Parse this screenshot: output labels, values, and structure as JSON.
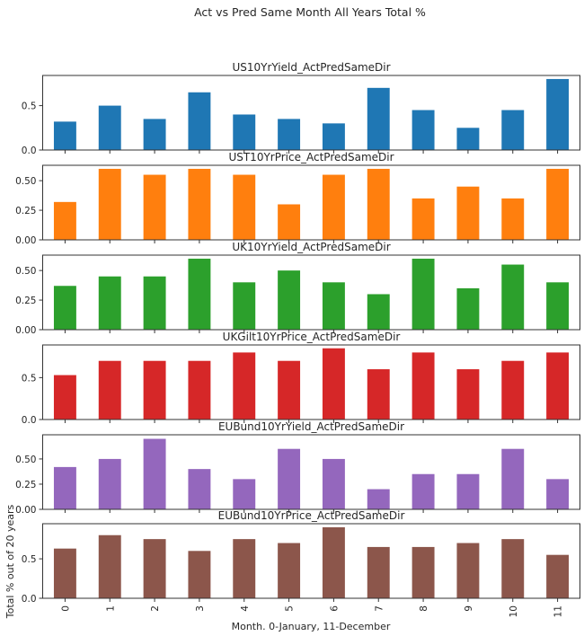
{
  "chart_data": {
    "type": "bar",
    "title": "Act vs Pred Same Month All Years Total %",
    "xlabel": "Month. 0-January, 11-December",
    "ylabel": "Total % out of 20 years",
    "categories": [
      "0",
      "1",
      "2",
      "3",
      "4",
      "5",
      "6",
      "7",
      "8",
      "9",
      "10",
      "11"
    ],
    "grid": false,
    "legend": "none",
    "subplots": [
      {
        "name": "US10YrYield_ActPredSameDir",
        "color": "#1f77b4",
        "ylim": [
          0,
          0.84
        ],
        "yticks": [
          0.0,
          0.5
        ],
        "ytick_labels": [
          "0.0",
          "0.5"
        ],
        "values": [
          0.32,
          0.5,
          0.35,
          0.65,
          0.4,
          0.35,
          0.3,
          0.7,
          0.45,
          0.25,
          0.45,
          0.8
        ]
      },
      {
        "name": "UST10YrPrice_ActPredSameDir",
        "color": "#ff7f0e",
        "ylim": [
          0,
          0.63
        ],
        "yticks": [
          0.0,
          0.25,
          0.5
        ],
        "ytick_labels": [
          "0.00",
          "0.25",
          "0.50"
        ],
        "values": [
          0.32,
          0.6,
          0.55,
          0.6,
          0.55,
          0.3,
          0.55,
          0.6,
          0.35,
          0.45,
          0.35,
          0.6
        ]
      },
      {
        "name": "UK10YrYield_ActPredSameDir",
        "color": "#2ca02c",
        "ylim": [
          0,
          0.63
        ],
        "yticks": [
          0.0,
          0.25,
          0.5
        ],
        "ytick_labels": [
          "0.00",
          "0.25",
          "0.50"
        ],
        "values": [
          0.37,
          0.45,
          0.45,
          0.6,
          0.4,
          0.5,
          0.4,
          0.3,
          0.6,
          0.35,
          0.55,
          0.4
        ]
      },
      {
        "name": "UKGilt10YrPrice_ActPredSameDir",
        "color": "#d62728",
        "ylim": [
          0,
          0.89
        ],
        "yticks": [
          0.0,
          0.5
        ],
        "ytick_labels": [
          "0.0",
          "0.5"
        ],
        "values": [
          0.53,
          0.7,
          0.7,
          0.7,
          0.8,
          0.7,
          0.85,
          0.6,
          0.8,
          0.6,
          0.7,
          0.8
        ]
      },
      {
        "name": "EUBund10YrYield_ActPredSameDir",
        "color": "#9467bd",
        "ylim": [
          0,
          0.74
        ],
        "yticks": [
          0.0,
          0.25,
          0.5
        ],
        "ytick_labels": [
          "0.00",
          "0.25",
          "0.50"
        ],
        "values": [
          0.42,
          0.5,
          0.7,
          0.4,
          0.3,
          0.6,
          0.5,
          0.2,
          0.35,
          0.35,
          0.6,
          0.3
        ]
      },
      {
        "name": "EUBund10YrPrice_ActPredSameDir",
        "color": "#8c564b",
        "ylim": [
          0,
          0.945
        ],
        "yticks": [
          0.0,
          0.5
        ],
        "ytick_labels": [
          "0.0",
          "0.5"
        ],
        "values": [
          0.63,
          0.8,
          0.75,
          0.6,
          0.75,
          0.7,
          0.9,
          0.65,
          0.65,
          0.7,
          0.75,
          0.55
        ]
      }
    ]
  }
}
